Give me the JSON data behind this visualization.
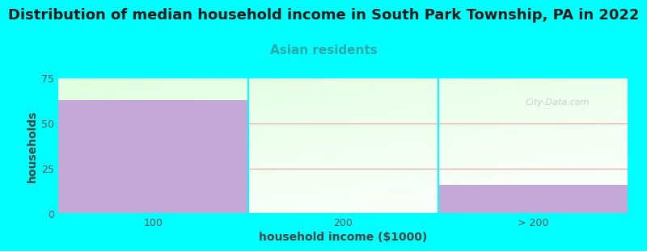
{
  "title": "Distribution of median household income in South Park Township, PA in 2022",
  "subtitle": "Asian residents",
  "xlabel": "household income ($1000)",
  "ylabel": "households",
  "categories": [
    "100",
    "200",
    "> 200"
  ],
  "values": [
    63,
    0,
    16
  ],
  "bar_color": "#c4a8d8",
  "ylim": [
    0,
    75
  ],
  "yticks": [
    0,
    25,
    50,
    75
  ],
  "background_color": "#00ffff",
  "grid_color": "#f0a0a0",
  "title_fontsize": 13,
  "subtitle_fontsize": 11,
  "subtitle_color": "#2ca8a8",
  "title_color": "#1a1a1a",
  "axis_label_color": "#444444",
  "tick_color": "#555555",
  "watermark": "City-Data.com"
}
